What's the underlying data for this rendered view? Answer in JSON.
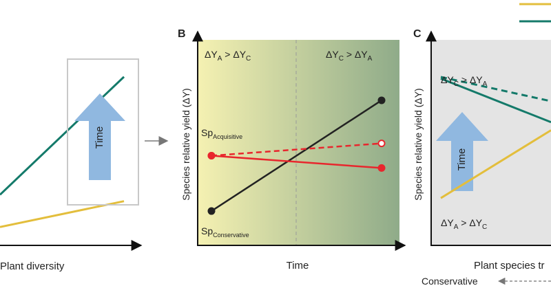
{
  "colors": {
    "teal": "#147a6a",
    "gold": "#e3be3c",
    "red": "#e8262d",
    "black": "#222222",
    "time_arrow": "#90b8e0",
    "gradient_left": "#f5f1b2",
    "gradient_right": "#8fab89",
    "panel_c_bg": "#e4e4e4",
    "frame_gray": "#c8c8c8"
  },
  "panel_a": {
    "xlabel": "Plant diversity",
    "arrow_label": "Time",
    "chart_data": {
      "type": "line",
      "series": [
        {
          "color": "teal",
          "values": [
            0.22,
            0.95
          ]
        },
        {
          "color": "gold",
          "values": [
            0.02,
            0.18
          ]
        }
      ]
    }
  },
  "panel_b": {
    "letter": "B",
    "ylabel": "Species relative yield (ΔY)",
    "xlabel": "Time",
    "ann_left": {
      "base": "ΔY",
      "sub1": "A",
      "op": " > ",
      "base2": "ΔY",
      "sub2": "C"
    },
    "ann_right": {
      "base": "ΔY",
      "sub1": "C",
      "op": " > ",
      "base2": "ΔY",
      "sub2": "A"
    },
    "acquisitive": {
      "base": "Sp",
      "sub": "Acquisitive"
    },
    "conservative": {
      "base": "Sp",
      "sub": "Conservative"
    },
    "chart_data": {
      "type": "line",
      "series": [
        {
          "name": "Conservative",
          "color": "black",
          "values": [
            0.05,
            0.95
          ]
        },
        {
          "name": "Acquisitive",
          "color": "red",
          "values": [
            0.5,
            0.4
          ]
        },
        {
          "name": "Acquisitive-projected",
          "color": "red",
          "dashed": true,
          "values": [
            0.5,
            0.6
          ]
        }
      ]
    }
  },
  "panel_c": {
    "letter": "C",
    "ylabel": "Species relative yield (ΔY)",
    "xlabel": "Plant species tr",
    "arrow_label": "Time",
    "ann_top": {
      "base": "ΔY",
      "sub1": "C",
      "op": " > ",
      "base2": "ΔY",
      "sub2": "A"
    },
    "ann_bottom": {
      "base": "ΔY",
      "sub1": "A",
      "op": " > ",
      "base2": "ΔY",
      "sub2": "C"
    },
    "footer": "Conservative",
    "chart_data": {
      "type": "line",
      "series": [
        {
          "color": "teal",
          "values": [
            0.82,
            0.55
          ]
        },
        {
          "color": "teal",
          "dashed": true,
          "values": [
            0.83,
            0.68
          ]
        },
        {
          "color": "gold",
          "values": [
            0.08,
            0.5
          ]
        }
      ]
    }
  },
  "legend": [
    {
      "color": "gold"
    },
    {
      "color": "teal"
    }
  ]
}
